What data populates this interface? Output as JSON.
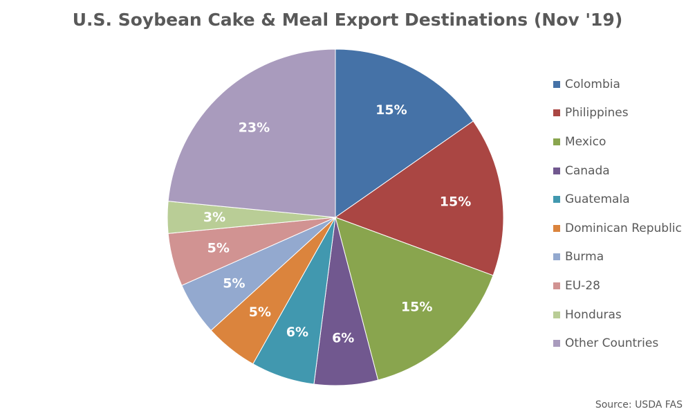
{
  "chart_data": {
    "type": "pie",
    "title": "U.S. Soybean Cake & Meal Export Destinations (Nov '19)",
    "categories": [
      "Colombia",
      "Philippines",
      "Mexico",
      "Canada",
      "Guatemala",
      "Dominican Republic",
      "Burma",
      "EU-28",
      "Honduras",
      "Other Countries"
    ],
    "values": [
      15,
      15,
      15,
      6,
      6,
      5,
      5,
      5,
      3,
      23
    ],
    "labels": [
      "15%",
      "15%",
      "15%",
      "6%",
      "6%",
      "5%",
      "5%",
      "5%",
      "3%",
      "23%"
    ],
    "colors": [
      "#4572A7",
      "#AA4643",
      "#89A54E",
      "#71588F",
      "#4198AF",
      "#DB843D",
      "#93A9CF",
      "#D19392",
      "#B9CD96",
      "#A99BBD"
    ],
    "legend_position": "right",
    "source": "Source: USDA FAS"
  }
}
